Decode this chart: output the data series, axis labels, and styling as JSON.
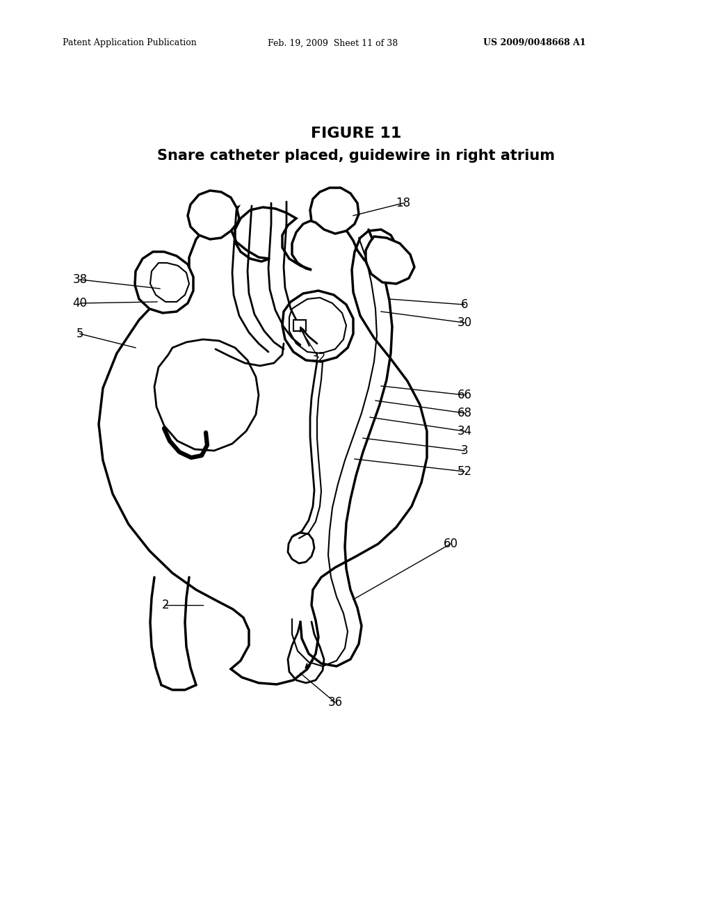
{
  "title_line1": "FIGURE 11",
  "title_line2": "Snare catheter placed, guidewire in right atrium",
  "header_left": "Patent Application Publication",
  "header_mid": "Feb. 19, 2009  Sheet 11 of 38",
  "header_right": "US 2009/0048668 A1",
  "bg_color": "#ffffff",
  "line_color": "#000000"
}
